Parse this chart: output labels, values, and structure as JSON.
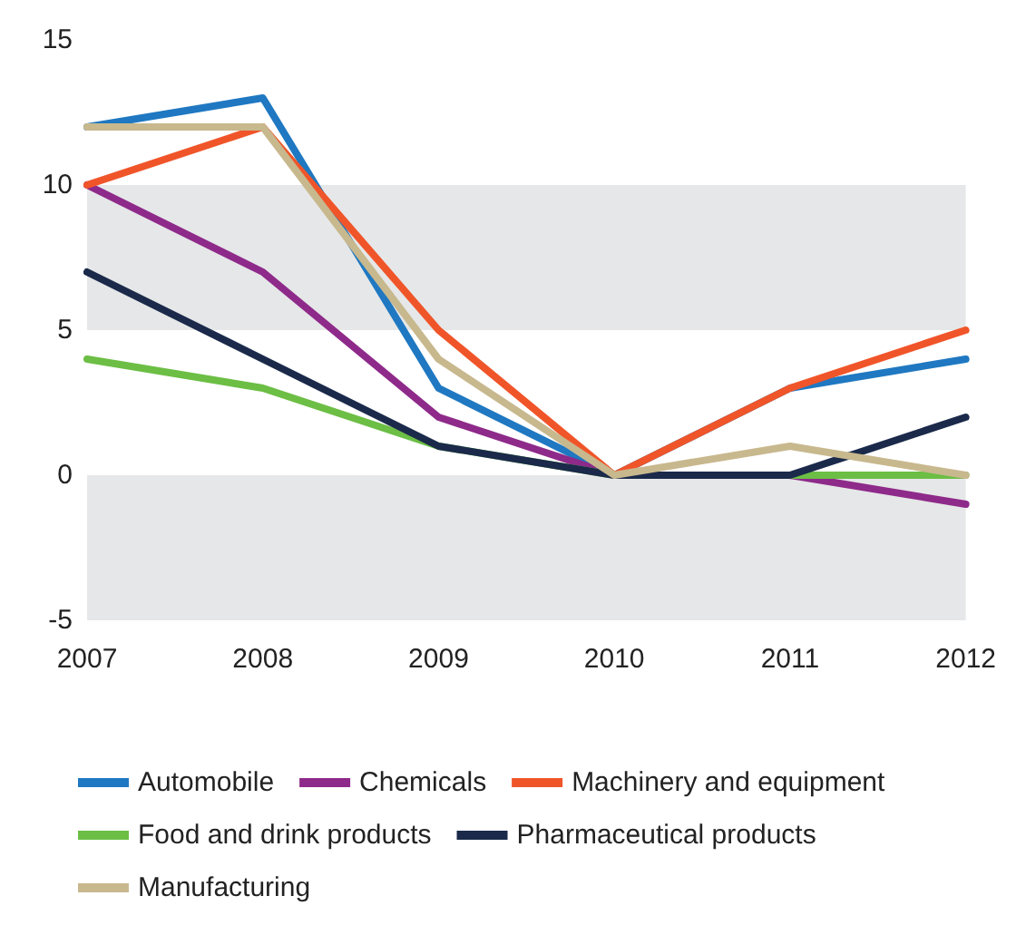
{
  "chart_data": {
    "type": "line",
    "categories": [
      "2007",
      "2008",
      "2009",
      "2010",
      "2011",
      "2012"
    ],
    "ylim": [
      -5,
      15
    ],
    "yticks": [
      -5,
      0,
      5,
      10,
      15
    ],
    "grid": false,
    "legend": "bottom",
    "marker": "none",
    "line_style": "solid",
    "bands": [
      {
        "axis": "y",
        "from": 5,
        "to": 10,
        "color": "#e6e7e8"
      },
      {
        "axis": "y",
        "from": -5,
        "to": 0,
        "color": "#e6e7e8"
      }
    ],
    "series": [
      {
        "name": "Automobile",
        "color": "#1f78c1",
        "values": [
          12,
          13,
          3,
          0,
          3,
          4
        ]
      },
      {
        "name": "Chemicals",
        "color": "#8e2a8a",
        "values": [
          10,
          7,
          2,
          0,
          0,
          -1
        ]
      },
      {
        "name": "Machinery and equipment",
        "color": "#f0552a",
        "values": [
          10,
          12,
          5,
          0,
          3,
          5
        ]
      },
      {
        "name": "Food and drink products",
        "color": "#6cbe45",
        "values": [
          4,
          3,
          1,
          0,
          0,
          0
        ]
      },
      {
        "name": "Pharmaceutical products",
        "color": "#1b2a4a",
        "values": [
          7,
          4,
          1,
          0,
          0,
          2
        ]
      },
      {
        "name": "Manufacturing",
        "color": "#c8b88e",
        "values": [
          12,
          12,
          4,
          0,
          1,
          0
        ]
      }
    ]
  }
}
